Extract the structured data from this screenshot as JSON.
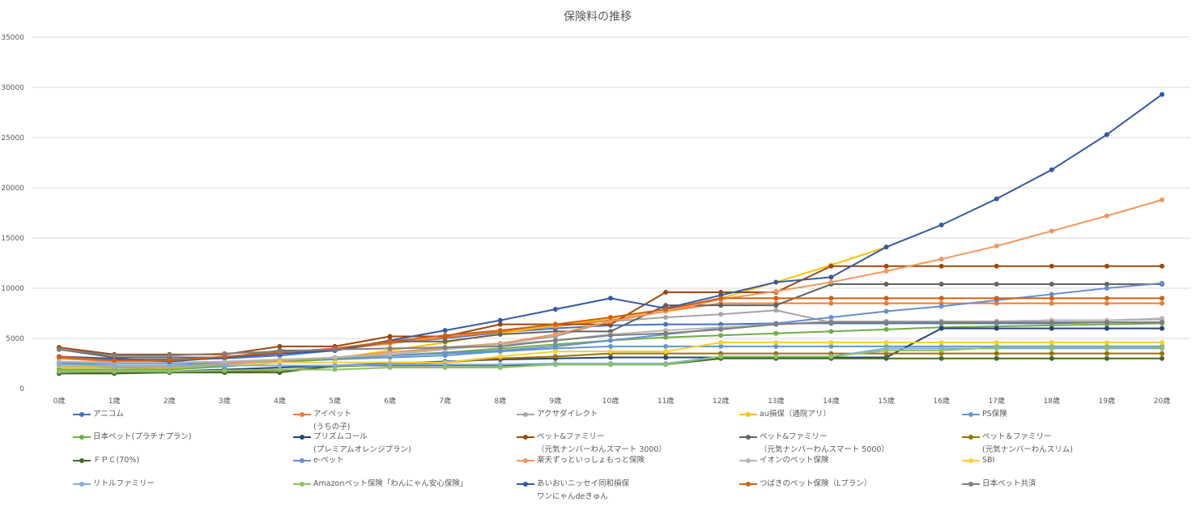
{
  "chart_data": {
    "type": "line",
    "title": "保険料の推移",
    "xlabel": "",
    "ylabel": "",
    "ylim": [
      0,
      35000
    ],
    "yticks": [
      0,
      5000,
      10000,
      15000,
      20000,
      25000,
      30000,
      35000
    ],
    "grid": true,
    "legend_position": "bottom",
    "categories": [
      "0歳",
      "1歳",
      "2歳",
      "3歳",
      "4歳",
      "5歳",
      "6歳",
      "7歳",
      "8歳",
      "9歳",
      "10歳",
      "11歳",
      "12歳",
      "13歳",
      "14歳",
      "15歳",
      "16歳",
      "17歳",
      "18歳",
      "19歳",
      "20歳"
    ],
    "series": [
      {
        "name": "アニコム",
        "color": "#4472C4",
        "values": [
          3100,
          2900,
          2900,
          3000,
          3300,
          3800,
          4600,
          5000,
          5600,
          6000,
          6300,
          6400,
          6400,
          6500,
          6500,
          6500,
          6500,
          6500,
          6500,
          6600,
          6600
        ]
      },
      {
        "name": "アイペット\n(うちの子)",
        "color": "#ED7D31",
        "values": [
          3000,
          2700,
          2700,
          3100,
          3500,
          3900,
          4500,
          5100,
          5700,
          6200,
          6800,
          7700,
          8500,
          8500,
          8500,
          8500,
          8500,
          8500,
          8500,
          8500,
          8500
        ]
      },
      {
        "name": "アクサダイレクト",
        "color": "#A5A5A5",
        "values": [
          2200,
          2100,
          2100,
          2400,
          2800,
          3100,
          3600,
          4100,
          4500,
          5200,
          6700,
          7100,
          7400,
          7800,
          6600,
          6700,
          6700,
          6700,
          6800,
          6800,
          6900
        ]
      },
      {
        "name": "au損保（通院アリ）",
        "color": "#FFC000",
        "values": [
          2000,
          1900,
          2000,
          2200,
          2600,
          3000,
          3800,
          4600,
          5500,
          6300,
          7000,
          7900,
          9000,
          10600,
          12300,
          14100,
          null,
          null,
          null,
          null,
          null
        ]
      },
      {
        "name": "PS保険",
        "color": "#5B9BD5",
        "values": [
          2600,
          2500,
          2500,
          2600,
          2700,
          2900,
          3100,
          3300,
          3700,
          4000,
          4200,
          4200,
          4200,
          4200,
          4200,
          4200,
          4200,
          4200,
          4200,
          4200,
          4200
        ]
      },
      {
        "name": "日本ペット(プラチナプラン)",
        "color": "#70AD47",
        "values": [
          1900,
          1900,
          1900,
          2200,
          2600,
          3000,
          3300,
          3600,
          4000,
          4400,
          4800,
          5100,
          5300,
          5500,
          5700,
          5900,
          6100,
          6200,
          6300,
          6400,
          6500
        ]
      },
      {
        "name": "プリズムコール\n(プレミアムオレンジプラン)",
        "color": "#264478",
        "values": [
          1700,
          1700,
          1700,
          1900,
          2100,
          2300,
          2500,
          2700,
          2900,
          3000,
          3100,
          3100,
          3100,
          3100,
          3100,
          3100,
          6000,
          6000,
          6000,
          6000,
          6000
        ]
      },
      {
        "name": "ペット&ファミリー\n（元気ナンバーわんスマート 3000）",
        "color": "#9E480E",
        "values": [
          4100,
          3400,
          3400,
          3400,
          4200,
          4200,
          5200,
          5200,
          6400,
          6400,
          6400,
          9600,
          9600,
          9600,
          12200,
          12200,
          12200,
          12200,
          12200,
          12200,
          12200
        ]
      },
      {
        "name": "ペット&ファミリー\n（元気ナンバーわんスマート 5000）",
        "color": "#636363",
        "values": [
          3900,
          3100,
          3100,
          3100,
          3800,
          3800,
          4700,
          4700,
          5400,
          5700,
          5700,
          8300,
          8300,
          8300,
          10400,
          10400,
          10400,
          10400,
          10400,
          10400,
          10400
        ]
      },
      {
        "name": "ペット＆ファミリー\n(元気ナンバーわんスリム)",
        "color": "#997300",
        "values": [
          1700,
          1600,
          1700,
          1700,
          1800,
          2200,
          2400,
          2600,
          3000,
          3200,
          3500,
          3500,
          3500,
          3500,
          3500,
          3500,
          3500,
          3500,
          3500,
          3500,
          3500
        ]
      },
      {
        "name": "ＦＰＣ(70%)",
        "color": "#43682B",
        "values": [
          1500,
          1500,
          1600,
          1600,
          1600,
          2300,
          2300,
          2300,
          2300,
          2400,
          2400,
          2400,
          3000,
          3000,
          3000,
          3000,
          3000,
          3000,
          3000,
          3000,
          3000
        ]
      },
      {
        "name": "e-ペット",
        "color": "#698ED0",
        "values": [
          2500,
          2300,
          2300,
          2500,
          2800,
          3100,
          3300,
          3500,
          3800,
          4200,
          4800,
          5400,
          6000,
          6500,
          7100,
          7700,
          8200,
          8800,
          9400,
          10000,
          10500
        ]
      },
      {
        "name": "楽天ずっといっしょもっと保険",
        "color": "#F1975A",
        "values": [
          2300,
          2200,
          2200,
          2500,
          2800,
          3100,
          3600,
          4000,
          4500,
          5400,
          6700,
          7700,
          8900,
          9700,
          10600,
          11700,
          12900,
          14200,
          15700,
          17200,
          18800
        ]
      },
      {
        "name": "イオンのペット保険",
        "color": "#B7B7B7",
        "values": [
          2700,
          2600,
          2600,
          2700,
          2900,
          3100,
          3400,
          3900,
          4400,
          4800,
          5400,
          5800,
          6100,
          6400,
          6700,
          6700,
          6700,
          6700,
          6800,
          6800,
          7000
        ]
      },
      {
        "name": "SBI",
        "color": "#FFCD33",
        "values": [
          2300,
          2300,
          2300,
          2300,
          2600,
          2600,
          2600,
          2600,
          3200,
          3700,
          3700,
          3700,
          4600,
          4600,
          4600,
          4600,
          4600,
          4600,
          4600,
          4600,
          4600
        ]
      },
      {
        "name": "リトルファミリー",
        "color": "#7CAFDD",
        "values": [
          2400,
          2300,
          2300,
          2300,
          2300,
          2300,
          2400,
          2400,
          2400,
          2500,
          2500,
          2500,
          3200,
          3200,
          3200,
          4000,
          4000,
          4000,
          4000,
          4000,
          4000
        ]
      },
      {
        "name": "Amazonペット保険「わんにゃん安心保険」",
        "color": "#8CC168",
        "values": [
          1700,
          1700,
          1700,
          1800,
          1900,
          1900,
          2100,
          2100,
          2100,
          2400,
          2400,
          2400,
          3200,
          3200,
          3200,
          3800,
          3800,
          4100,
          4100,
          4100,
          4100
        ]
      },
      {
        "name": "あいおいニッセイ同和損保\nワンにゃんdeきゅん",
        "color": "#335AA1",
        "values": [
          3200,
          3000,
          2700,
          3100,
          3500,
          3800,
          4800,
          5800,
          6800,
          7900,
          9000,
          8000,
          9300,
          10600,
          11100,
          14100,
          16300,
          18900,
          21800,
          25300,
          29300
        ]
      },
      {
        "name": "つばきのペット保険（Lプラン）",
        "color": "#D26012",
        "values": [
          3200,
          2800,
          2800,
          3200,
          3600,
          4000,
          4700,
          5300,
          5800,
          6400,
          7100,
          7900,
          9000,
          9000,
          9000,
          9000,
          9000,
          9000,
          9000,
          9000,
          9000
        ]
      },
      {
        "name": "日本ペット共済",
        "color": "#7F7F7F",
        "values": [
          3900,
          3300,
          3300,
          3500,
          3700,
          3900,
          4000,
          4100,
          4200,
          4800,
          5300,
          5500,
          5900,
          6400,
          6600,
          6600,
          6600,
          6600,
          6600,
          6600,
          6600
        ]
      }
    ]
  }
}
